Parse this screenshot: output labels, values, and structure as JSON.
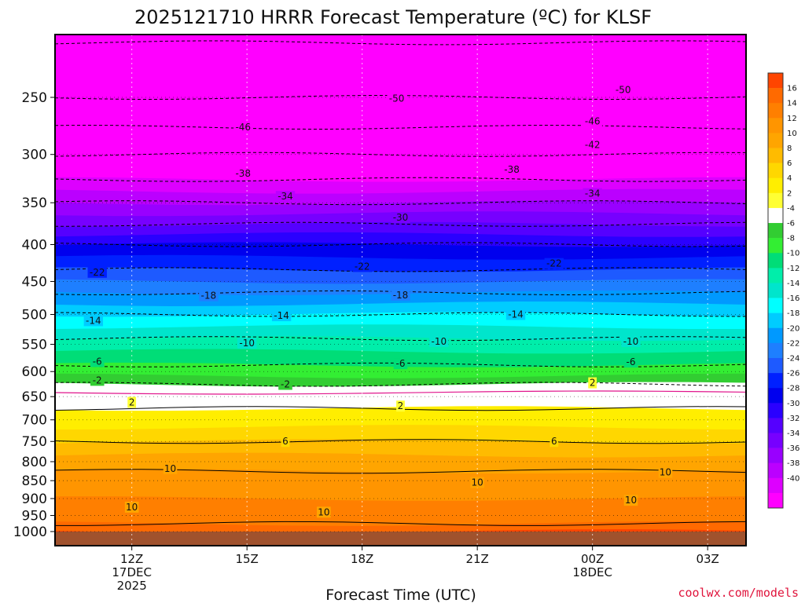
{
  "chart_data": {
    "type": "heatmap",
    "title": "2025121710 HRRR Forecast Temperature (ºC) for KLSF",
    "xlabel": "Forecast Time (UTC)",
    "ylabel": "",
    "credit": "coolwx.com/models",
    "x_ticks": [
      {
        "hour": 2,
        "lines": [
          "12Z",
          "17DEC",
          "2025"
        ]
      },
      {
        "hour": 5,
        "lines": [
          "15Z"
        ]
      },
      {
        "hour": 8,
        "lines": [
          "18Z"
        ]
      },
      {
        "hour": 11,
        "lines": [
          "21Z"
        ]
      },
      {
        "hour": 14,
        "lines": [
          "00Z",
          "18DEC"
        ]
      },
      {
        "hour": 17,
        "lines": [
          "03Z"
        ]
      }
    ],
    "xlim_hours": [
      0,
      18
    ],
    "y_ticks": [
      250,
      300,
      350,
      400,
      450,
      500,
      550,
      600,
      650,
      700,
      750,
      800,
      850,
      900,
      950,
      1000
    ],
    "ylim_hpa": [
      1000,
      200
    ],
    "y_scale": "log",
    "colorbar_ticks": [
      16,
      14,
      12,
      10,
      8,
      6,
      4,
      2,
      -4,
      -6,
      -8,
      -10,
      -12,
      -14,
      -16,
      -18,
      -20,
      -22,
      -24,
      -26,
      -28,
      -30,
      -32,
      -34,
      -36,
      -38,
      -40
    ],
    "colorbar_colors": [
      "#ff4500",
      "#ff6a00",
      "#ff7f00",
      "#ff9500",
      "#ffa500",
      "#ffbb00",
      "#ffd700",
      "#ffee00",
      "#ffff33",
      "#ffffff",
      "#32cd32",
      "#33ee33",
      "#00dd77",
      "#00eeaa",
      "#00e5cc",
      "#00ffff",
      "#00ccff",
      "#0099ff",
      "#1e7fff",
      "#1e5aff",
      "#0020ff",
      "#0000ee",
      "#2a00ff",
      "#5500ff",
      "#7700ff",
      "#9900ff",
      "#bb00ff",
      "#dd00ff",
      "#ff00ff"
    ],
    "surface_color": "#a0522d",
    "isotherm_profile": {
      "pressure_hpa": [
        200,
        250,
        300,
        350,
        400,
        450,
        500,
        550,
        600,
        650,
        700,
        750,
        800,
        850,
        900,
        950,
        1000
      ],
      "temp_c": [
        -55,
        -50,
        -42,
        -34,
        -26,
        -20,
        -14,
        -9,
        -5,
        1,
        3,
        6,
        9,
        11,
        12,
        13,
        15
      ]
    },
    "contour_labels": [
      {
        "value": "-50",
        "hour": 8.9,
        "hpa": 251
      },
      {
        "value": "-50",
        "hour": 14.8,
        "hpa": 244
      },
      {
        "value": "-46",
        "hour": 4.9,
        "hpa": 275
      },
      {
        "value": "-46",
        "hour": 14,
        "hpa": 270
      },
      {
        "value": "-42",
        "hour": 14,
        "hpa": 291
      },
      {
        "value": "-38",
        "hour": 4.9,
        "hpa": 319
      },
      {
        "value": "-38",
        "hour": 11.9,
        "hpa": 315
      },
      {
        "value": "-34",
        "hour": 6,
        "hpa": 343
      },
      {
        "value": "-34",
        "hour": 14,
        "hpa": 340
      },
      {
        "value": "-30",
        "hour": 9,
        "hpa": 367
      },
      {
        "value": "-22",
        "hour": 1.1,
        "hpa": 437
      },
      {
        "value": "-22",
        "hour": 8,
        "hpa": 429
      },
      {
        "value": "-22",
        "hour": 13,
        "hpa": 425
      },
      {
        "value": "-18",
        "hour": 4,
        "hpa": 471
      },
      {
        "value": "-18",
        "hour": 9,
        "hpa": 470
      },
      {
        "value": "-14",
        "hour": 1,
        "hpa": 510
      },
      {
        "value": "-14",
        "hour": 5.9,
        "hpa": 502
      },
      {
        "value": "-14",
        "hour": 12,
        "hpa": 500
      },
      {
        "value": "-10",
        "hour": 5,
        "hpa": 548
      },
      {
        "value": "-10",
        "hour": 10,
        "hpa": 545
      },
      {
        "value": "-10",
        "hour": 15,
        "hpa": 545
      },
      {
        "value": "-6",
        "hour": 1.1,
        "hpa": 581
      },
      {
        "value": "-6",
        "hour": 9,
        "hpa": 585
      },
      {
        "value": "-6",
        "hour": 15,
        "hpa": 582
      },
      {
        "value": "-2",
        "hour": 1.1,
        "hpa": 617
      },
      {
        "value": "-2",
        "hour": 6,
        "hpa": 625
      },
      {
        "value": "2",
        "hour": 14,
        "hpa": 622
      },
      {
        "value": "2",
        "hour": 2,
        "hpa": 662
      },
      {
        "value": "2",
        "hour": 9,
        "hpa": 670
      },
      {
        "value": "6",
        "hour": 6,
        "hpa": 750
      },
      {
        "value": "6",
        "hour": 13,
        "hpa": 750
      },
      {
        "value": "10",
        "hour": 3,
        "hpa": 818
      },
      {
        "value": "10",
        "hour": 11,
        "hpa": 855
      },
      {
        "value": "10",
        "hour": 15.9,
        "hpa": 828
      },
      {
        "value": "10",
        "hour": 2,
        "hpa": 925
      },
      {
        "value": "10",
        "hour": 7,
        "hpa": 940
      },
      {
        "value": "10",
        "hour": 15,
        "hpa": 905
      }
    ]
  }
}
